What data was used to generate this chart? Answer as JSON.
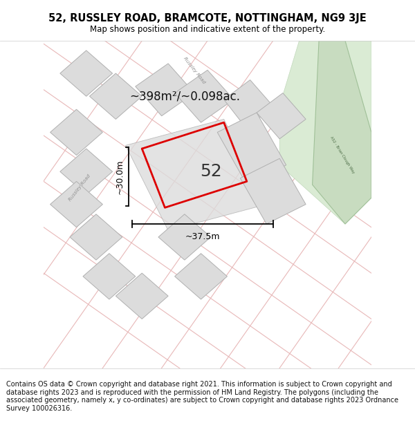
{
  "title_line1": "52, RUSSLEY ROAD, BRAMCOTE, NOTTINGHAM, NG9 3JE",
  "title_line2": "Map shows position and indicative extent of the property.",
  "footer_text": "Contains OS data © Crown copyright and database right 2021. This information is subject to Crown copyright and database rights 2023 and is reproduced with the permission of HM Land Registry. The polygons (including the associated geometry, namely x, y co-ordinates) are subject to Crown copyright and database rights 2023 Ordnance Survey 100026316.",
  "area_label": "~398m²/~0.098ac.",
  "number_label": "52",
  "width_label": "~37.5m",
  "height_label": "~30.0m",
  "map_bg": "#f7f5f5",
  "road_color": "#e8b8b8",
  "plot_outline_color": "#dd0000",
  "building_fill": "#dcdcdc",
  "building_edge": "#b0b0b0",
  "green_fill": "#c8dcc0",
  "green_edge": "#a0c098",
  "green_inner": "#a8c8a0",
  "road_label_color": "#909090",
  "title_fontsize": 10.5,
  "subtitle_fontsize": 8.5,
  "footer_fontsize": 7.0,
  "number_fontsize": 18,
  "area_fontsize": 12,
  "dim_fontsize": 9
}
